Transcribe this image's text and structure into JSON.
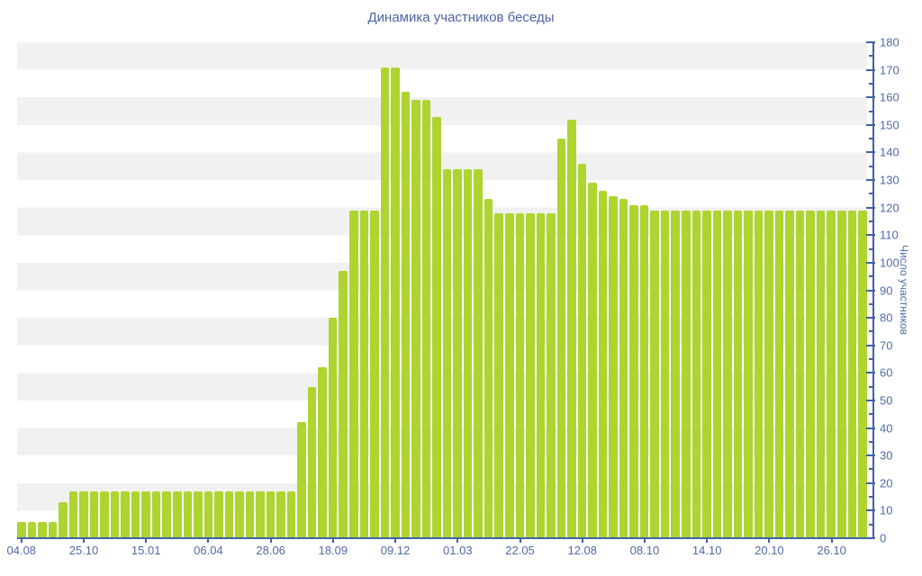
{
  "title": "Динамика участников беседы",
  "chart_data": {
    "type": "bar",
    "title": "Динамика участников беседы",
    "xlabel": "",
    "ylabel": "Число участников",
    "ylim": [
      0,
      180
    ],
    "y_major_step": 10,
    "y_minor_step": 5,
    "grid": "alternating horizontal stripe bands every 10 units, y-axis on right side",
    "legend_position": "none",
    "x_tick_labels": [
      "04.08",
      "25.10",
      "15.01",
      "06.04",
      "28.06",
      "18.09",
      "09.12",
      "01.03",
      "22.05",
      "12.08",
      "08.10",
      "14.10",
      "20.10",
      "26.10"
    ],
    "x_tick_every_n_bars": 6,
    "values": [
      6,
      6,
      6,
      6,
      13,
      17,
      17,
      17,
      17,
      17,
      17,
      17,
      17,
      17,
      17,
      17,
      17,
      17,
      17,
      17,
      17,
      17,
      17,
      17,
      17,
      17,
      17,
      42,
      55,
      62,
      80,
      97,
      119,
      119,
      119,
      171,
      171,
      162,
      159,
      159,
      153,
      134,
      134,
      134,
      134,
      123,
      118,
      118,
      118,
      118,
      118,
      118,
      145,
      152,
      136,
      129,
      126,
      124,
      123,
      121,
      121,
      119,
      119,
      119,
      119,
      119,
      119,
      119,
      119,
      119,
      119,
      119,
      119,
      119,
      119,
      119,
      119,
      119,
      119,
      119,
      119,
      119
    ],
    "colors": {
      "bar": "#aed42f",
      "axis": "#4061a8",
      "tick_label": "#5069a8",
      "title": "#4d64a3",
      "stripe": "#f1f1f1",
      "background": "#ffffff"
    }
  }
}
